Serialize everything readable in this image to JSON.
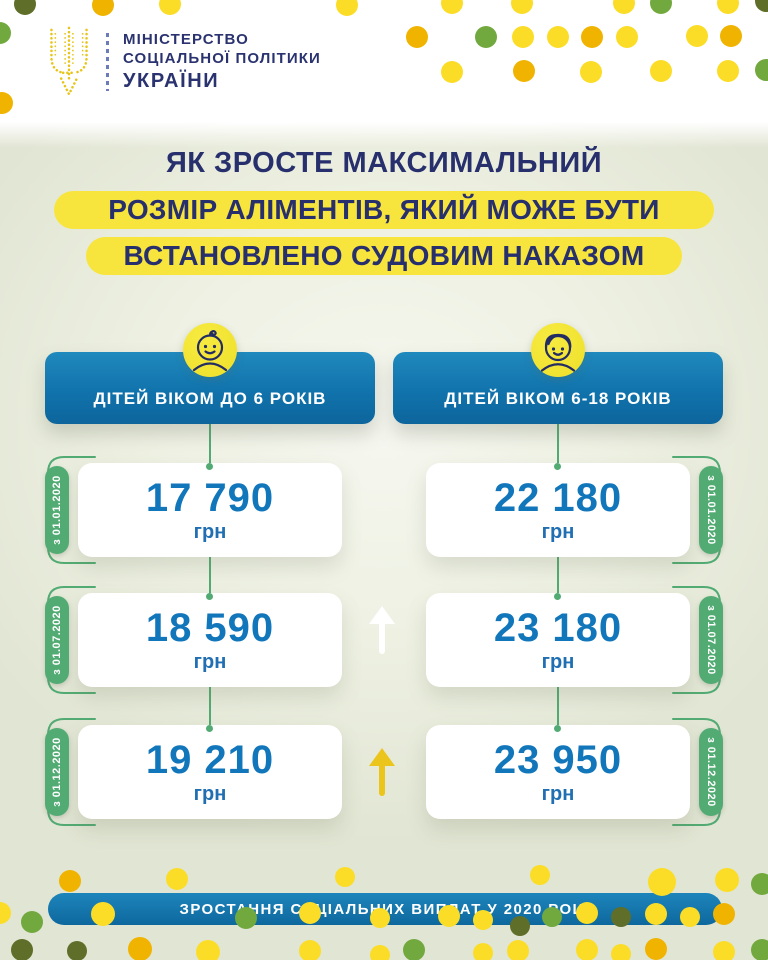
{
  "ministry": {
    "name_lines": [
      "МІНІСТЕРСТВО",
      "СОЦІАЛЬНОЇ ПОЛІТИКИ",
      "УКРАЇНИ"
    ]
  },
  "title": {
    "lines": [
      "ЯК ЗРОСТЕ МАКСИМАЛЬНИЙ",
      "РОЗМІР АЛІМЕНТІВ, ЯКИЙ МОЖЕ БУТИ",
      "ВСТАНОВЛЕНО СУДОВИМ НАКАЗОМ"
    ]
  },
  "columns": [
    {
      "id": "under-6",
      "icon": "baby-icon",
      "header": "ДІТЕЙ ВІКОМ ДО 6 РОКІВ",
      "rows": [
        {
          "date": "з 01.01.2020",
          "amount": "17 790",
          "unit": "грн"
        },
        {
          "date": "з 01.07.2020",
          "amount": "18 590",
          "unit": "грн"
        },
        {
          "date": "з 01.12.2020",
          "amount": "19 210",
          "unit": "грн"
        }
      ]
    },
    {
      "id": "6-18",
      "icon": "child-icon",
      "header": "ДІТЕЙ ВІКОМ 6-18 РОКІВ",
      "rows": [
        {
          "date": "з 01.01.2020",
          "amount": "22 180",
          "unit": "грн"
        },
        {
          "date": "з 01.07.2020",
          "amount": "23 180",
          "unit": "грн"
        },
        {
          "date": "з 01.12.2020",
          "amount": "23 950",
          "unit": "грн"
        }
      ]
    }
  ],
  "footer": {
    "banner": "ЗРОСТАННЯ СОЦІАЛЬНИХ ВИПЛАТ У 2020 РОЦІ"
  },
  "chart_data": {
    "type": "table",
    "title": "ЯК ЗРОСТЕ МАКСИМАЛЬНИЙ РОЗМІР АЛІМЕНТІВ, ЯКИЙ МОЖЕ БУТИ ВСТАНОВЛЕНО СУДОВИМ НАКАЗОМ",
    "categories": [
      "з 01.01.2020",
      "з 01.07.2020",
      "з 01.12.2020"
    ],
    "series": [
      {
        "name": "ДІТЕЙ ВІКОМ ДО 6 РОКІВ",
        "values": [
          17790,
          18590,
          19210
        ]
      },
      {
        "name": "ДІТЕЙ ВІКОМ 6-18 РОКІВ",
        "values": [
          22180,
          23180,
          23950
        ]
      }
    ],
    "unit": "грн",
    "footnote": "ЗРОСТАННЯ СОЦІАЛЬНИХ ВИПЛАТ У 2020 РОЦІ"
  },
  "colors": {
    "header_blue": "#1173ac",
    "value_blue": "#1276bb",
    "title_navy": "#272f6d",
    "highlight_yellow": "#f7e53d",
    "green": "#53ab74",
    "icon_yellow": "#f2e433",
    "arrow_gold": "#ecc51c",
    "dot_yellow": "#fbdd28",
    "dot_orange": "#f0b400",
    "dot_green": "#72a93f",
    "dot_olive": "#5f6e28"
  }
}
